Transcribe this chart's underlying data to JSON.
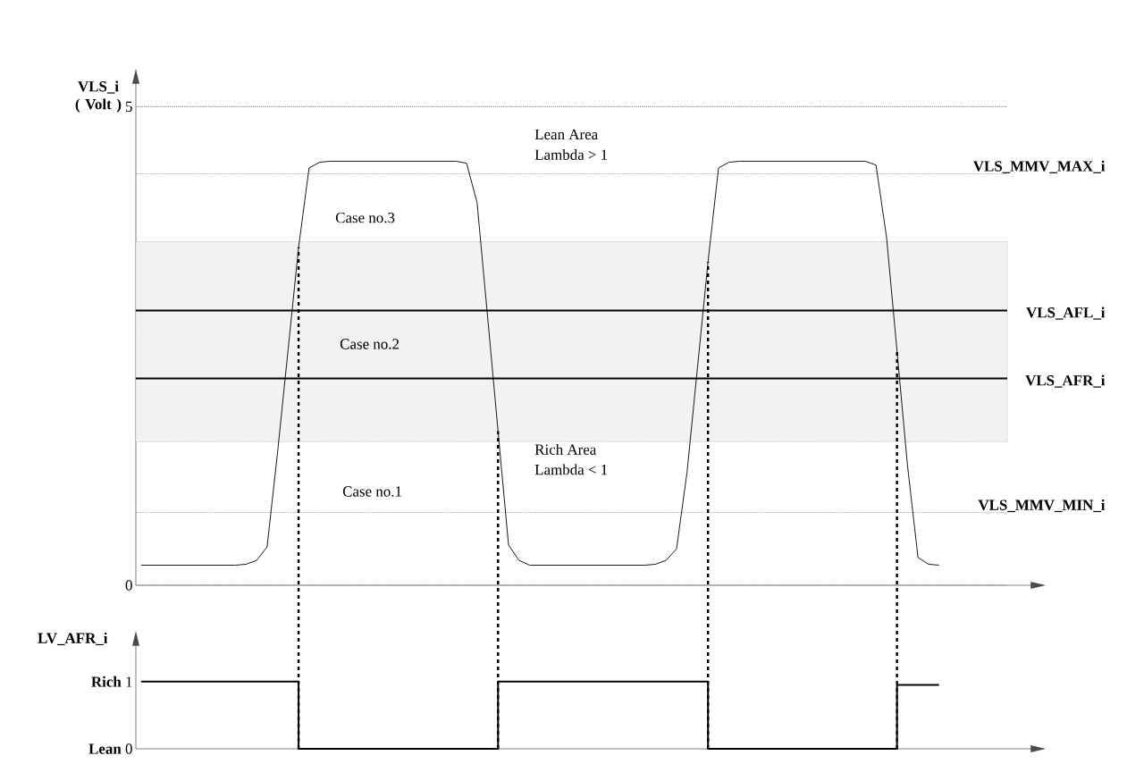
{
  "chart_data": [
    {
      "type": "line",
      "ylabel": "VLS_i ( Volt )",
      "grid": true,
      "ylim": [
        0,
        5.34
      ],
      "yticks": [
        {
          "value": 0,
          "label": "0"
        },
        {
          "value": 5,
          "label": "5"
        }
      ],
      "tick_labels": "y",
      "categories": [
        null,
        null,
        null,
        null,
        null,
        null,
        null,
        null,
        null,
        null,
        null,
        null,
        null,
        null,
        null,
        null,
        null,
        null,
        null,
        null,
        null,
        null,
        null,
        null,
        null,
        null,
        null,
        null,
        null,
        null,
        null,
        null,
        null,
        null,
        null,
        null,
        null,
        null,
        null,
        null,
        null,
        null,
        null,
        null,
        null,
        null,
        null,
        null,
        null,
        null,
        null,
        null,
        null,
        null,
        null,
        null,
        null,
        null,
        null,
        null,
        null,
        null,
        null,
        null,
        null,
        null,
        null,
        null,
        null,
        null,
        null,
        null,
        null,
        null,
        null,
        null,
        null,
        null,
        null,
        null,
        null,
        null,
        null
      ],
      "series": [
        {
          "color": "#000000",
          "values": [
            0.21,
            0.21,
            0.21,
            0.21,
            0.21,
            0.21,
            0.21,
            0.21,
            0.21,
            0.21,
            0.22,
            0.26,
            0.4,
            1.39,
            2.46,
            3.53,
            4.36,
            4.42,
            4.43,
            4.43,
            4.43,
            4.43,
            4.43,
            4.43,
            4.43,
            4.43,
            4.43,
            4.43,
            4.43,
            4.43,
            4.43,
            4.41,
            4.0,
            2.81,
            1.61,
            0.42,
            0.26,
            0.21,
            0.21,
            0.21,
            0.21,
            0.21,
            0.21,
            0.21,
            0.21,
            0.21,
            0.21,
            0.21,
            0.21,
            0.22,
            0.26,
            0.38,
            1.18,
            2.28,
            3.38,
            4.36,
            4.42,
            4.43,
            4.43,
            4.43,
            4.43,
            4.43,
            4.43,
            4.43,
            4.43,
            4.43,
            4.43,
            4.43,
            4.43,
            4.43,
            4.39,
            3.64,
            2.45,
            1.25,
            0.29,
            0.22,
            0.21,
            null,
            null,
            null,
            null,
            null,
            null
          ]
        }
      ],
      "bands": [
        {
          "axis": "y",
          "from": 1.5,
          "to": 3.59,
          "color": "#f2f2f2"
        }
      ],
      "ref_lines": [
        {
          "axis": "y",
          "value": 5,
          "color": "#808080",
          "line_style": "dotted"
        },
        {
          "axis": "y",
          "value": 4.3,
          "label": "VLS_MMV_MAX_i",
          "color": "#808080",
          "line_style": "dotted"
        },
        {
          "axis": "y",
          "value": 2.87,
          "label": "VLS_AFL_i",
          "color": "#000000",
          "line_style": "solid"
        },
        {
          "axis": "y",
          "value": 2.16,
          "label": "VLS_AFR_i",
          "color": "#000000",
          "line_style": "solid"
        },
        {
          "axis": "y",
          "value": 0.76,
          "label": "VLS_MMV_MIN_i",
          "color": "#808080",
          "line_style": "dotted"
        }
      ],
      "annotations": [
        "Lean Area",
        "Lambda > 1",
        "Case no.3",
        "Case no.2",
        "Case no.1",
        "Rich Area",
        "Lambda < 1"
      ]
    },
    {
      "type": "step",
      "ylabel": "LV_AFR_i",
      "ylim": [
        0,
        1.675
      ],
      "yticks": [
        {
          "value": 0,
          "label": "**Lean**  0"
        },
        {
          "value": 1,
          "label": "**Rich**  1"
        }
      ],
      "tick_labels": "y",
      "categories": [
        null,
        null,
        null,
        null,
        null,
        null,
        null,
        null,
        null,
        null,
        null,
        null,
        null,
        null,
        null,
        null,
        null,
        null,
        null,
        null,
        null,
        null,
        null,
        null,
        null,
        null,
        null,
        null,
        null,
        null,
        null,
        null,
        null,
        null,
        null,
        null,
        null,
        null,
        null,
        null,
        null,
        null,
        null,
        null,
        null,
        null,
        null,
        null,
        null,
        null,
        null,
        null,
        null,
        null,
        null,
        null,
        null,
        null,
        null,
        null,
        null,
        null,
        null,
        null,
        null,
        null,
        null,
        null,
        null,
        null,
        null,
        null,
        null,
        null,
        null,
        null,
        null,
        null,
        null,
        null,
        null,
        null,
        null
      ],
      "series": [
        {
          "color": "#000000",
          "values": [
            1,
            1,
            1,
            1,
            1,
            1,
            1,
            1,
            1,
            1,
            1,
            1,
            1,
            1,
            1,
            0,
            0,
            0,
            0,
            0,
            0,
            0,
            0,
            0,
            0,
            0,
            0,
            0,
            0,
            0,
            0,
            0,
            0,
            0,
            1,
            1,
            1,
            1,
            1,
            1,
            1,
            1,
            1,
            1,
            1,
            1,
            1,
            1,
            1,
            1,
            1,
            1,
            1,
            1,
            0,
            0,
            0,
            0,
            0,
            0,
            0,
            0,
            0,
            0,
            0,
            0,
            0,
            0,
            0,
            0,
            0,
            0,
            0.95,
            0.95,
            0.95,
            0.95,
            0.95,
            null,
            null,
            null,
            null,
            null,
            null
          ]
        }
      ]
    }
  ]
}
